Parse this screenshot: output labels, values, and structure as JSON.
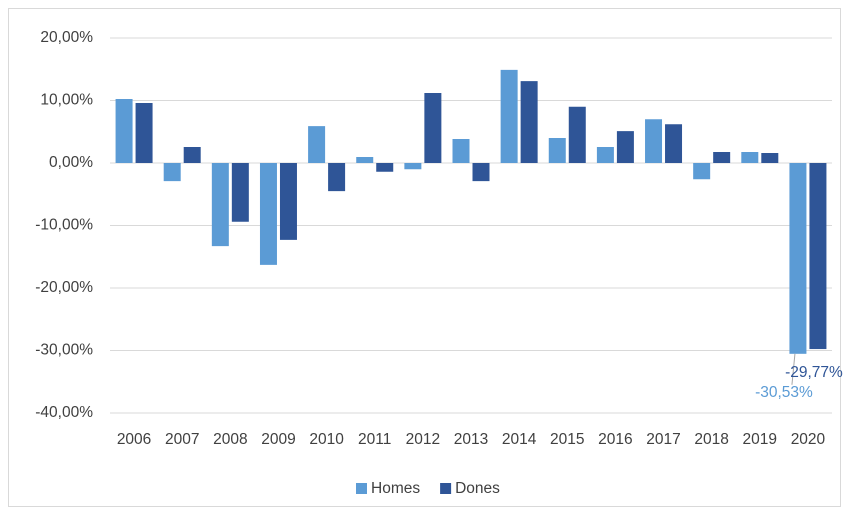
{
  "chart_data": {
    "type": "bar",
    "categories": [
      "2006",
      "2007",
      "2008",
      "2009",
      "2010",
      "2011",
      "2012",
      "2013",
      "2014",
      "2015",
      "2016",
      "2017",
      "2018",
      "2019",
      "2020"
    ],
    "series": [
      {
        "name": "Homes",
        "color": "#5b9bd5",
        "values": [
          10.24,
          -2.9,
          -13.3,
          -16.3,
          5.9,
          0.96,
          -1.0,
          3.84,
          14.9,
          4.0,
          2.56,
          7.0,
          -2.6,
          1.76,
          -30.53
        ],
        "value_labels": [
          null,
          null,
          null,
          null,
          null,
          null,
          null,
          null,
          null,
          null,
          null,
          null,
          null,
          null,
          "-30,53%"
        ]
      },
      {
        "name": "Dones",
        "color": "#2f5597",
        "values": [
          9.6,
          2.56,
          -9.4,
          -12.3,
          -4.5,
          -1.4,
          11.2,
          -2.9,
          13.1,
          9.0,
          5.1,
          6.2,
          1.76,
          1.6,
          -29.77
        ],
        "value_labels": [
          null,
          null,
          null,
          null,
          null,
          null,
          null,
          null,
          null,
          null,
          null,
          null,
          null,
          null,
          "-29,77%"
        ]
      }
    ],
    "ylim": [
      -40,
      20
    ],
    "yticks": [
      {
        "value": -40,
        "label": "-40,00%"
      },
      {
        "value": -30,
        "label": "-30,00%"
      },
      {
        "value": -20,
        "label": "-20,00%"
      },
      {
        "value": -10,
        "label": "-10,00%"
      },
      {
        "value": 0,
        "label": "0,00%"
      },
      {
        "value": 10,
        "label": "10,00%"
      },
      {
        "value": 20,
        "label": "20,00%"
      }
    ],
    "grid": true,
    "legend": "bottom"
  }
}
